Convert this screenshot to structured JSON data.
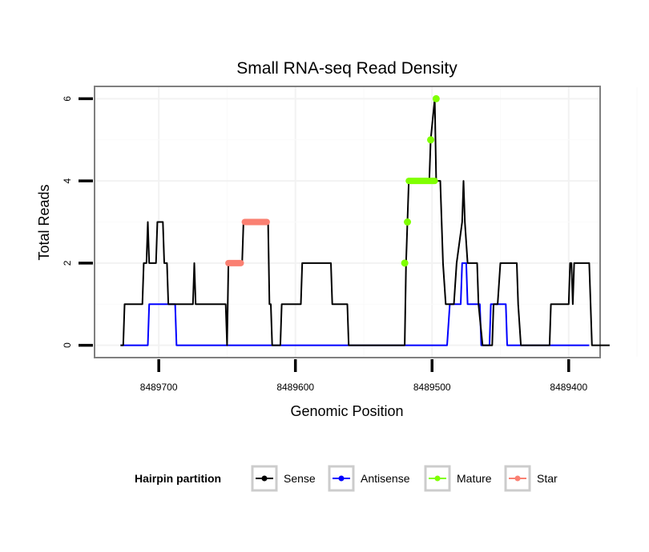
{
  "chart_data": {
    "type": "line",
    "title": "Small RNA-seq Read Density",
    "xlabel": "Genomic Position",
    "ylabel": "Total Reads",
    "x_reversed": true,
    "xlim": [
      8489747,
      8489377
    ],
    "ylim": [
      -0.3,
      6.3
    ],
    "xticks": [
      8489700,
      8489600,
      8489500,
      8489400
    ],
    "xtick_labels": [
      "8489700",
      "8489600",
      "8489500",
      "8489400"
    ],
    "yticks": [
      0,
      2,
      4,
      6
    ],
    "ytick_labels": [
      "0",
      "2",
      "4",
      "6"
    ],
    "grid": true,
    "legend": {
      "title": "Hairpin partition",
      "placement": "bottom",
      "entries": [
        {
          "name": "Sense",
          "color": "#000000"
        },
        {
          "name": "Antisense",
          "color": "#0000ff"
        },
        {
          "name": "Mature",
          "color": "#7fff00"
        },
        {
          "name": "Star",
          "color": "#fa8072"
        }
      ]
    },
    "series": [
      {
        "name": "Sense",
        "color": "#000000",
        "points": [
          [
            8489728,
            0
          ],
          [
            8489726,
            0
          ],
          [
            8489725,
            1
          ],
          [
            8489712,
            1
          ],
          [
            8489711,
            2
          ],
          [
            8489709,
            2
          ],
          [
            8489708,
            3
          ],
          [
            8489707,
            2
          ],
          [
            8489702,
            2
          ],
          [
            8489701,
            3
          ],
          [
            8489697,
            3
          ],
          [
            8489696,
            2
          ],
          [
            8489694,
            2
          ],
          [
            8489693,
            1
          ],
          [
            8489675,
            1
          ],
          [
            8489674,
            2
          ],
          [
            8489673,
            1
          ],
          [
            8489651,
            1
          ],
          [
            8489650,
            0
          ],
          [
            8489649,
            2
          ],
          [
            8489639,
            2
          ],
          [
            8489638,
            3
          ],
          [
            8489620,
            3
          ],
          [
            8489619,
            1
          ],
          [
            8489618,
            1
          ],
          [
            8489617,
            0
          ],
          [
            8489611,
            0
          ],
          [
            8489610,
            1
          ],
          [
            8489596,
            1
          ],
          [
            8489595,
            2
          ],
          [
            8489574,
            2
          ],
          [
            8489573,
            1
          ],
          [
            8489562,
            1
          ],
          [
            8489561,
            0
          ],
          [
            8489520,
            0
          ],
          [
            8489519,
            2
          ],
          [
            8489518,
            3
          ],
          [
            8489517,
            4
          ],
          [
            8489502,
            4
          ],
          [
            8489501,
            5
          ],
          [
            8489498,
            6
          ],
          [
            8489497,
            4
          ],
          [
            8489494,
            4
          ],
          [
            8489492,
            2
          ],
          [
            8489490,
            1
          ],
          [
            8489484,
            1
          ],
          [
            8489482,
            2
          ],
          [
            8489478,
            3
          ],
          [
            8489477,
            4
          ],
          [
            8489476,
            3
          ],
          [
            8489474,
            2
          ],
          [
            8489467,
            2
          ],
          [
            8489466,
            1
          ],
          [
            8489463,
            0
          ],
          [
            8489456,
            0
          ],
          [
            8489455,
            1
          ],
          [
            8489452,
            1
          ],
          [
            8489450,
            2
          ],
          [
            8489438,
            2
          ],
          [
            8489437,
            1
          ],
          [
            8489435,
            0
          ],
          [
            8489414,
            0
          ],
          [
            8489413,
            1
          ],
          [
            8489400,
            1
          ],
          [
            8489399,
            2
          ],
          [
            8489398,
            2
          ],
          [
            8489397,
            1
          ],
          [
            8489396,
            2
          ],
          [
            8489385,
            2
          ],
          [
            8489384,
            1
          ],
          [
            8489383,
            0
          ],
          [
            8489370,
            0
          ]
        ]
      },
      {
        "name": "Antisense",
        "color": "#0000ff",
        "points": [
          [
            8489728,
            0
          ],
          [
            8489708,
            0
          ],
          [
            8489707,
            1
          ],
          [
            8489688,
            1
          ],
          [
            8489687,
            0
          ],
          [
            8489489,
            0
          ],
          [
            8489487,
            1
          ],
          [
            8489479,
            1
          ],
          [
            8489478,
            2
          ],
          [
            8489475,
            2
          ],
          [
            8489474,
            1
          ],
          [
            8489465,
            1
          ],
          [
            8489464,
            0
          ],
          [
            8489458,
            0
          ],
          [
            8489457,
            1
          ],
          [
            8489446,
            1
          ],
          [
            8489445,
            0
          ],
          [
            8489385,
            0
          ]
        ]
      },
      {
        "name": "Mature",
        "color": "#7fff00",
        "segments": [
          [
            [
              8489520,
              2
            ],
            [
              8489520,
              2
            ]
          ],
          [
            [
              8489518,
              3
            ],
            [
              8489518,
              3
            ]
          ],
          [
            [
              8489517,
              4
            ],
            [
              8489498,
              4
            ]
          ],
          [
            [
              8489501,
              5
            ],
            [
              8489501,
              5
            ]
          ],
          [
            [
              8489497,
              6
            ],
            [
              8489497,
              6
            ]
          ]
        ]
      },
      {
        "name": "Star",
        "color": "#fa8072",
        "segments": [
          [
            [
              8489649,
              2
            ],
            [
              8489640,
              2
            ]
          ],
          [
            [
              8489637,
              3
            ],
            [
              8489621,
              3
            ]
          ]
        ]
      }
    ]
  }
}
